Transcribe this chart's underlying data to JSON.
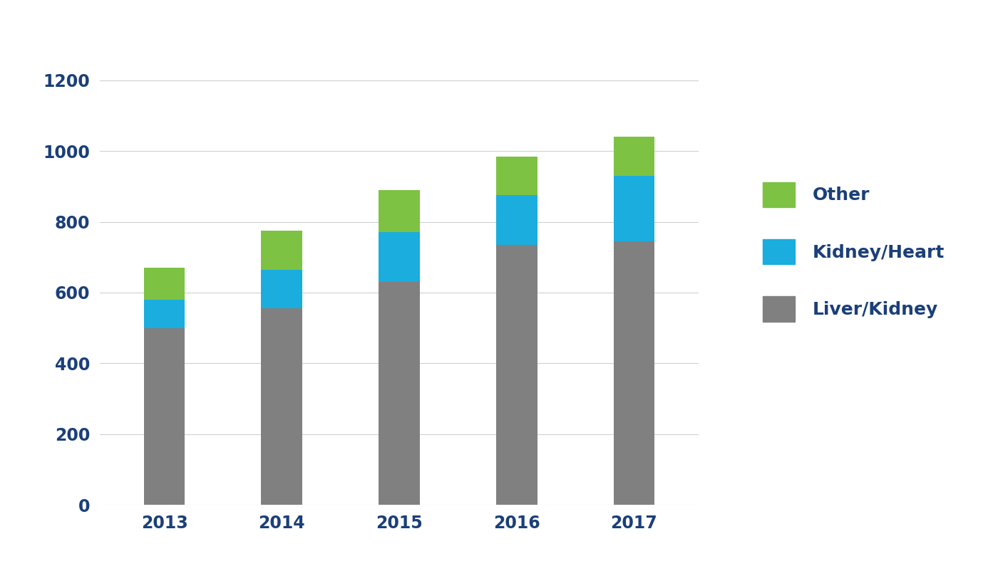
{
  "years": [
    "2013",
    "2014",
    "2015",
    "2016",
    "2017"
  ],
  "liver_kidney": [
    500,
    555,
    630,
    735,
    745
  ],
  "kidney_heart": [
    80,
    110,
    140,
    140,
    185
  ],
  "other": [
    90,
    110,
    120,
    110,
    110
  ],
  "color_liver_kidney": "#808080",
  "color_kidney_heart": "#1AADDE",
  "color_other": "#7DC243",
  "label_liver_kidney": "Liver/Kidney",
  "label_kidney_heart": "Kidney/Heart",
  "label_other": "Other",
  "ylim": [
    0,
    1300
  ],
  "yticks": [
    0,
    200,
    400,
    600,
    800,
    1000,
    1200
  ],
  "background_color": "#ffffff",
  "tick_color": "#1B3F7A",
  "grid_color": "#d0d0d0",
  "bar_width": 0.35,
  "legend_fontsize": 18,
  "tick_fontsize": 17
}
